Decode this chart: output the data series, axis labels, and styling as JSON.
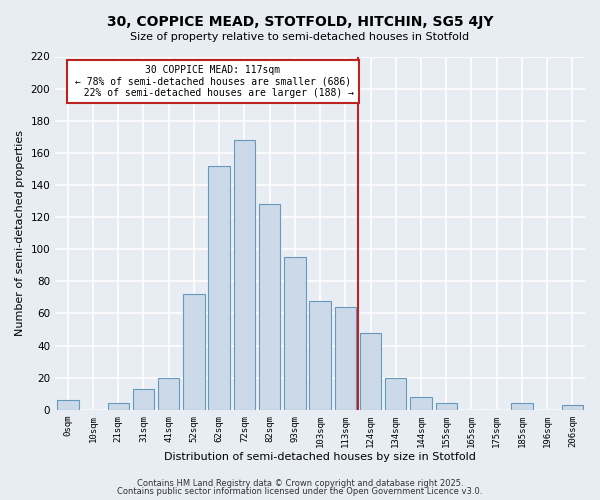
{
  "title": "30, COPPICE MEAD, STOTFOLD, HITCHIN, SG5 4JY",
  "subtitle": "Size of property relative to semi-detached houses in Stotfold",
  "xlabel": "Distribution of semi-detached houses by size in Stotfold",
  "ylabel": "Number of semi-detached properties",
  "categories": [
    "0sqm",
    "10sqm",
    "21sqm",
    "31sqm",
    "41sqm",
    "52sqm",
    "62sqm",
    "72sqm",
    "82sqm",
    "93sqm",
    "103sqm",
    "113sqm",
    "124sqm",
    "134sqm",
    "144sqm",
    "155sqm",
    "165sqm",
    "175sqm",
    "185sqm",
    "196sqm",
    "206sqm"
  ],
  "values": [
    6,
    0,
    4,
    13,
    20,
    72,
    152,
    168,
    128,
    95,
    68,
    64,
    48,
    20,
    8,
    4,
    0,
    0,
    4,
    0,
    3
  ],
  "bar_color": "#ccd9e8",
  "bar_edge_color": "#6699bb",
  "background_color": "#e8edf4",
  "grid_color": "#ffffff",
  "vline_index": 11,
  "vline_color": "#bb2222",
  "pct_smaller": 78,
  "n_smaller": 686,
  "pct_larger": 22,
  "n_larger": 188,
  "annotation_box_color": "#bb2222",
  "ylim": [
    0,
    220
  ],
  "yticks": [
    0,
    20,
    40,
    60,
    80,
    100,
    120,
    140,
    160,
    180,
    200,
    220
  ],
  "footer1": "Contains HM Land Registry data © Crown copyright and database right 2025.",
  "footer2": "Contains public sector information licensed under the Open Government Licence v3.0."
}
